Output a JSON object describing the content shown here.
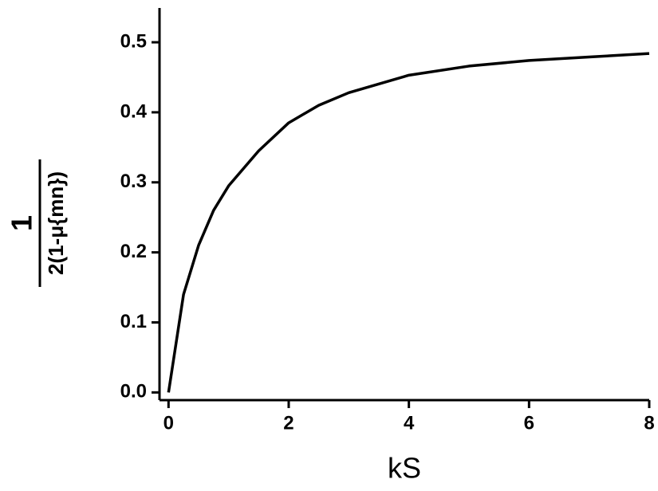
{
  "chart_data": {
    "type": "line",
    "x_label": "kS",
    "y_label_numerator": "1",
    "y_label_denominator": "2(1-μ{mn})",
    "x": [
      0,
      0.25,
      0.5,
      0.75,
      1,
      1.5,
      2,
      2.5,
      3,
      4,
      5,
      6,
      7,
      8
    ],
    "series": [
      {
        "color": "#000000",
        "values": [
          0,
          0.14,
          0.21,
          0.26,
          0.295,
          0.345,
          0.385,
          0.41,
          0.428,
          0.453,
          0.466,
          0.474,
          0.479,
          0.484
        ]
      }
    ],
    "xlim": [
      -0.15,
      8
    ],
    "ylim": [
      -0.011,
      0.549
    ],
    "xticks": [
      0,
      2,
      4,
      6,
      8
    ],
    "yticks": [
      {
        "value": 0,
        "label": "0.0"
      },
      0.1,
      0.2,
      0.3,
      0.4,
      0.5
    ]
  }
}
